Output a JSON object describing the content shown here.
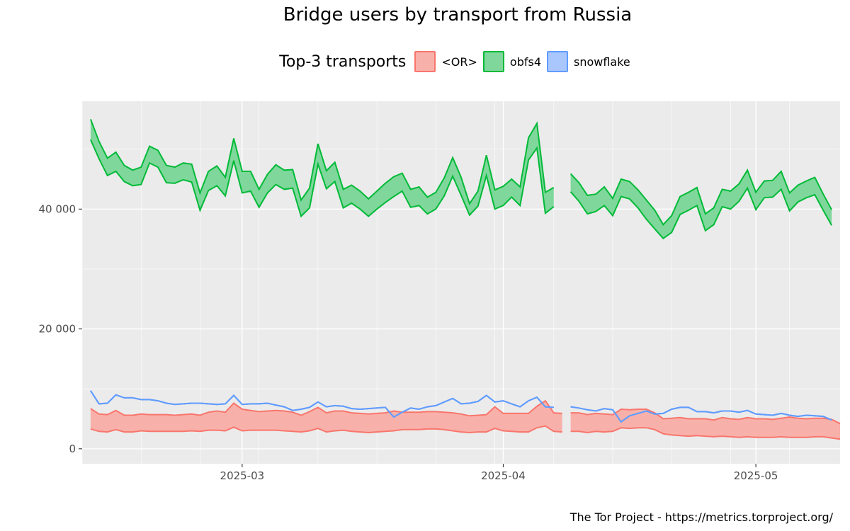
{
  "chart_data": {
    "type": "area",
    "title": "Bridge users by transport from Russia",
    "legend_title": "Top-3 transports",
    "legend_position": "top",
    "caption": "The Tor Project - https://metrics.torproject.org/",
    "xlabel": "",
    "ylabel": "",
    "ylim": [
      -2500,
      58000
    ],
    "y_ticks": [
      0,
      20000,
      40000
    ],
    "y_tick_labels": [
      "0",
      "20 000",
      "40 000"
    ],
    "x_range": [
      "2025-02-10",
      "2025-05-11"
    ],
    "x_ticks": [
      "2025-03-01",
      "2025-04-01",
      "2025-05-01"
    ],
    "x_tick_labels": [
      "2025-03",
      "2025-04",
      "2025-05"
    ],
    "grid": true,
    "colors": {
      "panel": "#ebebeb",
      "grid": "#ffffff",
      "OR_fill": "#f8b1aa",
      "OR_line": "#f8766d",
      "obfs4_fill": "#7fd79b",
      "obfs4_line": "#00ba38",
      "snowflake_fill": "#a9c6fd",
      "snowflake_line": "#619cff"
    },
    "series": [
      {
        "name": "<OR>",
        "segments": [
          {
            "start": "2025-02-11",
            "upper": [
              6700,
              5800,
              5700,
              6400,
              5600,
              5600,
              5800,
              5700,
              5700,
              5700,
              5600,
              5700,
              5800,
              5600,
              6100,
              6300,
              6100,
              7600,
              6600,
              6400,
              6200,
              6300,
              6400,
              6300,
              6100,
              5600,
              6200,
              6900,
              6000,
              6300,
              6300,
              6000,
              5900,
              5800,
              5900,
              6000,
              6300,
              6100,
              6100,
              6100,
              6200,
              6200,
              6100,
              6000,
              5800,
              5500,
              5600,
              5700,
              7000,
              5900,
              5900,
              5900,
              5900,
              7100,
              8000,
              6000,
              5900
            ],
            "lower": [
              3300,
              2900,
              2800,
              3200,
              2800,
              2800,
              3000,
              2900,
              2900,
              2900,
              2900,
              2900,
              3000,
              2900,
              3100,
              3100,
              3000,
              3600,
              3000,
              3100,
              3100,
              3100,
              3100,
              3000,
              2900,
              2800,
              3000,
              3400,
              2800,
              3000,
              3100,
              2900,
              2800,
              2700,
              2800,
              2900,
              3000,
              3200,
              3200,
              3200,
              3300,
              3300,
              3200,
              3000,
              2800,
              2700,
              2800,
              2800,
              3400,
              3000,
              2900,
              2800,
              2800,
              3500,
              3800,
              2900,
              2800
            ]
          },
          {
            "start": "2025-04-09",
            "upper": [
              6000,
              6000,
              5700,
              5900,
              5800,
              5700,
              6600,
              6500,
              6600,
              6600,
              6000,
              5000,
              5100,
              5200,
              5000,
              5000,
              5000,
              4800,
              5200,
              5000,
              4900,
              5200,
              5000,
              5000,
              4900,
              5100,
              5300,
              5100,
              5000,
              5100,
              5100,
              4900,
              4200
            ],
            "lower": [
              2900,
              2900,
              2700,
              2900,
              2800,
              2900,
              3500,
              3400,
              3500,
              3500,
              3200,
              2500,
              2300,
              2200,
              2100,
              2200,
              2100,
              2000,
              2100,
              2000,
              1900,
              2000,
              1900,
              1900,
              1900,
              2000,
              1900,
              1900,
              1900,
              2000,
              2000,
              1800,
              1600
            ]
          }
        ]
      },
      {
        "name": "obfs4",
        "segments": [
          {
            "start": "2025-02-11",
            "upper": [
              55000,
              51300,
              48500,
              49500,
              47300,
              46500,
              47000,
              50500,
              49800,
              47300,
              47000,
              47700,
              47500,
              42700,
              46300,
              47200,
              45300,
              51800,
              46300,
              46300,
              43300,
              45800,
              47400,
              46500,
              46600,
              41500,
              43500,
              50900,
              46400,
              47800,
              43300,
              44000,
              43000,
              41700,
              43000,
              44300,
              45400,
              46000,
              43300,
              43700,
              42000,
              42800,
              45200,
              48600,
              45300,
              40900,
              43000,
              49000,
              43200,
              43800,
              45000,
              43700,
              51900,
              54300,
              42800,
              43600
            ],
            "lower": [
              51600,
              48400,
              45600,
              46300,
              44600,
              43900,
              44100,
              47700,
              47000,
              44400,
              44300,
              44900,
              44500,
              39800,
              43100,
              43900,
              42200,
              48100,
              42700,
              43000,
              40300,
              42700,
              44100,
              43300,
              43500,
              38800,
              40200,
              47500,
              43400,
              44600,
              40200,
              41000,
              40000,
              38800,
              40000,
              41100,
              42100,
              43000,
              40300,
              40600,
              39200,
              40000,
              42200,
              45500,
              42300,
              39000,
              40500,
              45600,
              40000,
              40600,
              42000,
              40600,
              48200,
              50200,
              39300,
              40400
            ]
          },
          {
            "start": "2025-04-09",
            "upper": [
              45900,
              44400,
              42300,
              42500,
              43700,
              41800,
              45000,
              44600,
              43200,
              41500,
              39800,
              37400,
              38900,
              42100,
              42800,
              43600,
              39200,
              40200,
              43300,
              43000,
              44200,
              46500,
              42800,
              44700,
              44800,
              46300,
              42700,
              44000,
              44700,
              45300,
              42500,
              39900
            ],
            "lower": [
              42900,
              41300,
              39200,
              39600,
              40600,
              38900,
              42100,
              41700,
              40200,
              38300,
              36700,
              35100,
              36100,
              39100,
              39800,
              40600,
              36400,
              37400,
              40400,
              40000,
              41300,
              43500,
              39900,
              41900,
              42000,
              43300,
              39700,
              41200,
              41900,
              42400,
              39800,
              37300
            ]
          }
        ]
      },
      {
        "name": "snowflake",
        "segments": [
          {
            "start": "2025-02-11",
            "upper": [
              9700,
              7500,
              7600,
              9000,
              8500,
              8500,
              8200,
              8200,
              8000,
              7600,
              7400,
              7500,
              7600,
              7600,
              7500,
              7400,
              7500,
              8900,
              7400,
              7500,
              7500,
              7600,
              7300,
              7000,
              6400,
              6600,
              6900,
              7800,
              7000,
              7200,
              7100,
              6700,
              6600,
              6700,
              6800,
              6900,
              5300,
              6100,
              6800,
              6600,
              7000,
              7200,
              7800,
              8400,
              7500,
              7600,
              7900,
              8900,
              7800,
              8000,
              7500,
              7000,
              8000,
              8600,
              7000,
              6900
            ],
            "lower": [
              9700,
              7500,
              7600,
              9000,
              8500,
              8500,
              8200,
              8200,
              8000,
              7600,
              7400,
              7500,
              7600,
              7600,
              7500,
              7400,
              7500,
              8900,
              7400,
              7500,
              7500,
              7600,
              7300,
              7000,
              6400,
              6600,
              6900,
              7800,
              7000,
              7200,
              7100,
              6700,
              6600,
              6700,
              6800,
              6900,
              5300,
              6100,
              6800,
              6600,
              7000,
              7200,
              7800,
              8400,
              7500,
              7600,
              7900,
              8900,
              7800,
              8000,
              7500,
              7000,
              8000,
              8600,
              7000,
              6900
            ]
          },
          {
            "start": "2025-04-09",
            "upper": [
              7000,
              6800,
              6500,
              6300,
              6700,
              6500,
              4500,
              5500,
              5900,
              6300,
              5800,
              5900,
              6600,
              6900,
              6900,
              6200,
              6200,
              6000,
              6300,
              6300,
              6100,
              6400,
              5800,
              5700,
              5600,
              5900,
              5600,
              5400,
              5600,
              5500,
              5400,
              4800
            ],
            "lower": [
              7000,
              6800,
              6500,
              6300,
              6700,
              6500,
              4500,
              5500,
              5900,
              6300,
              5800,
              5900,
              6600,
              6900,
              6900,
              6200,
              6200,
              6000,
              6300,
              6300,
              6100,
              6400,
              5800,
              5700,
              5600,
              5900,
              5600,
              5400,
              5600,
              5500,
              5400,
              4800
            ]
          }
        ]
      }
    ]
  }
}
